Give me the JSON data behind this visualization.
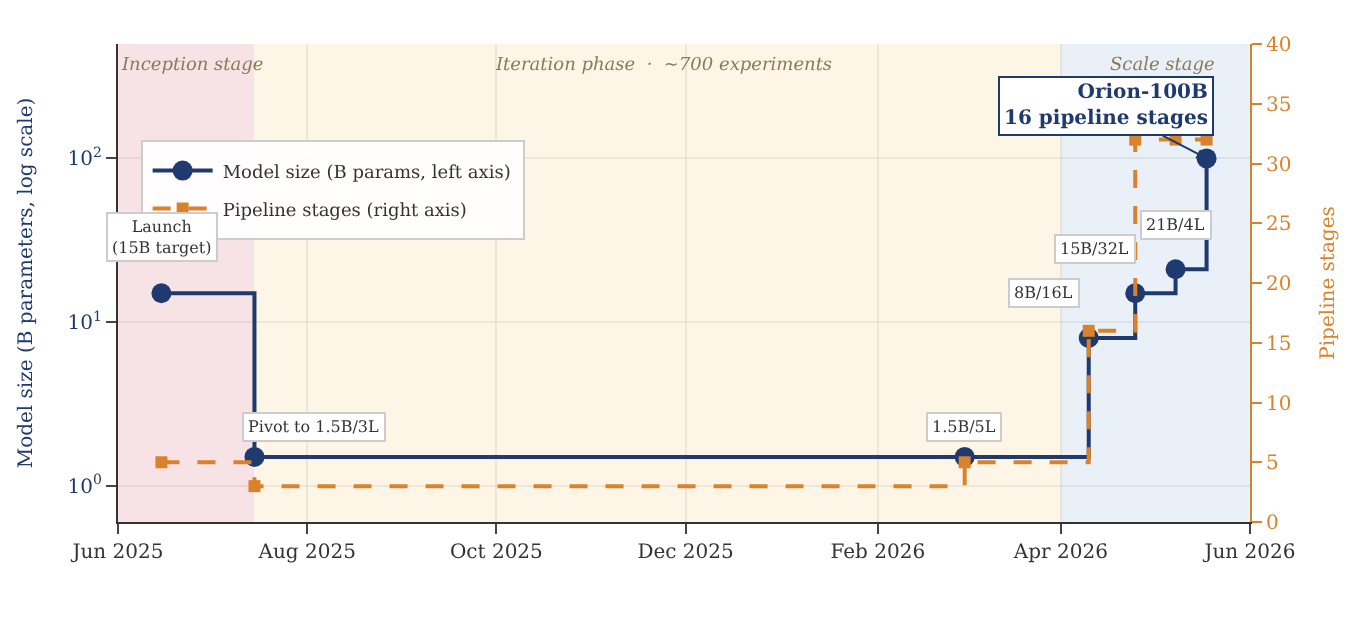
{
  "chart_data": {
    "type": "step",
    "xlabel": null,
    "ylabel": "Model size (B parameters, log scale)",
    "y2label": "Pipeline stages",
    "x": [
      "2025-06-15",
      "2025-07-15",
      "2026-03-01",
      "2026-04-10",
      "2026-04-25",
      "2026-05-08",
      "2026-05-18"
    ],
    "series": [
      {
        "name": "Model size (B params, left axis)",
        "color": "#1f3a6e",
        "values": [
          15,
          1.5,
          1.5,
          8,
          15,
          21,
          100
        ],
        "marker": "circle",
        "line_style": "solid"
      },
      {
        "name": "Pipeline stages (right axis)",
        "color": "#d9822b",
        "values": [
          5,
          3,
          5,
          16,
          32,
          32,
          32
        ],
        "axis": "y2",
        "marker": "square",
        "line_style": "dashed"
      }
    ],
    "log": "y",
    "xlim": [
      "2025-06-01",
      "2026-06-01"
    ],
    "xticks": [
      {
        "value": "2025-06-01",
        "label": "Jun 2025"
      },
      {
        "value": "2025-08-01",
        "label": "Aug 2025"
      },
      {
        "value": "2025-10-01",
        "label": "Oct 2025"
      },
      {
        "value": "2025-12-01",
        "label": "Dec 2025"
      },
      {
        "value": "2026-02-01",
        "label": "Feb 2026"
      },
      {
        "value": "2026-04-01",
        "label": "Apr 2026"
      },
      {
        "value": "2026-06-01",
        "label": "Jun 2026"
      }
    ],
    "ylim": [
      0.6,
      500
    ],
    "yticks": [
      {
        "value": 1,
        "label": "10$^{0}$"
      },
      {
        "value": 10,
        "label": "10$^{1}$"
      },
      {
        "value": 100,
        "label": "10$^{2}$"
      }
    ],
    "y2lim": [
      0,
      40
    ],
    "y2ticks": [
      0,
      5,
      10,
      15,
      20,
      25,
      30,
      35,
      40
    ],
    "bands": [
      {
        "axis": "x",
        "from": "2025-06-01",
        "to": "2025-07-15",
        "label": "Inception stage",
        "color": "#f7e3e6"
      },
      {
        "axis": "x",
        "from": "2025-07-15",
        "to": "2026-04-01",
        "label": "Iteration phase  ·  ~700 experiments",
        "color": "#fdf6e6"
      },
      {
        "axis": "x",
        "from": "2026-04-01",
        "to": "2026-06-01",
        "label": "Scale stage",
        "color": "#e9f0f8"
      }
    ],
    "annotations": [
      {
        "text": "Launch\n(15B target)",
        "x": "2025-06-15",
        "y": 15
      },
      {
        "text": "Pivot to 1.5B/3L",
        "x": "2025-07-15",
        "y": 1.5
      },
      {
        "text": "1.5B/5L",
        "x": "2026-03-01",
        "y": 1.5
      },
      {
        "text": "8B/16L",
        "x": "2026-04-10",
        "y": 8
      },
      {
        "text": "15B/32L",
        "x": "2026-04-25",
        "y": 15
      },
      {
        "text": "21B/4L",
        "x": "2026-05-08",
        "y": 21
      },
      {
        "text": "Orion-100B\n16 pipeline stages",
        "x": "2026-05-18",
        "y": 100
      }
    ],
    "grid": true,
    "legend": "top left"
  }
}
